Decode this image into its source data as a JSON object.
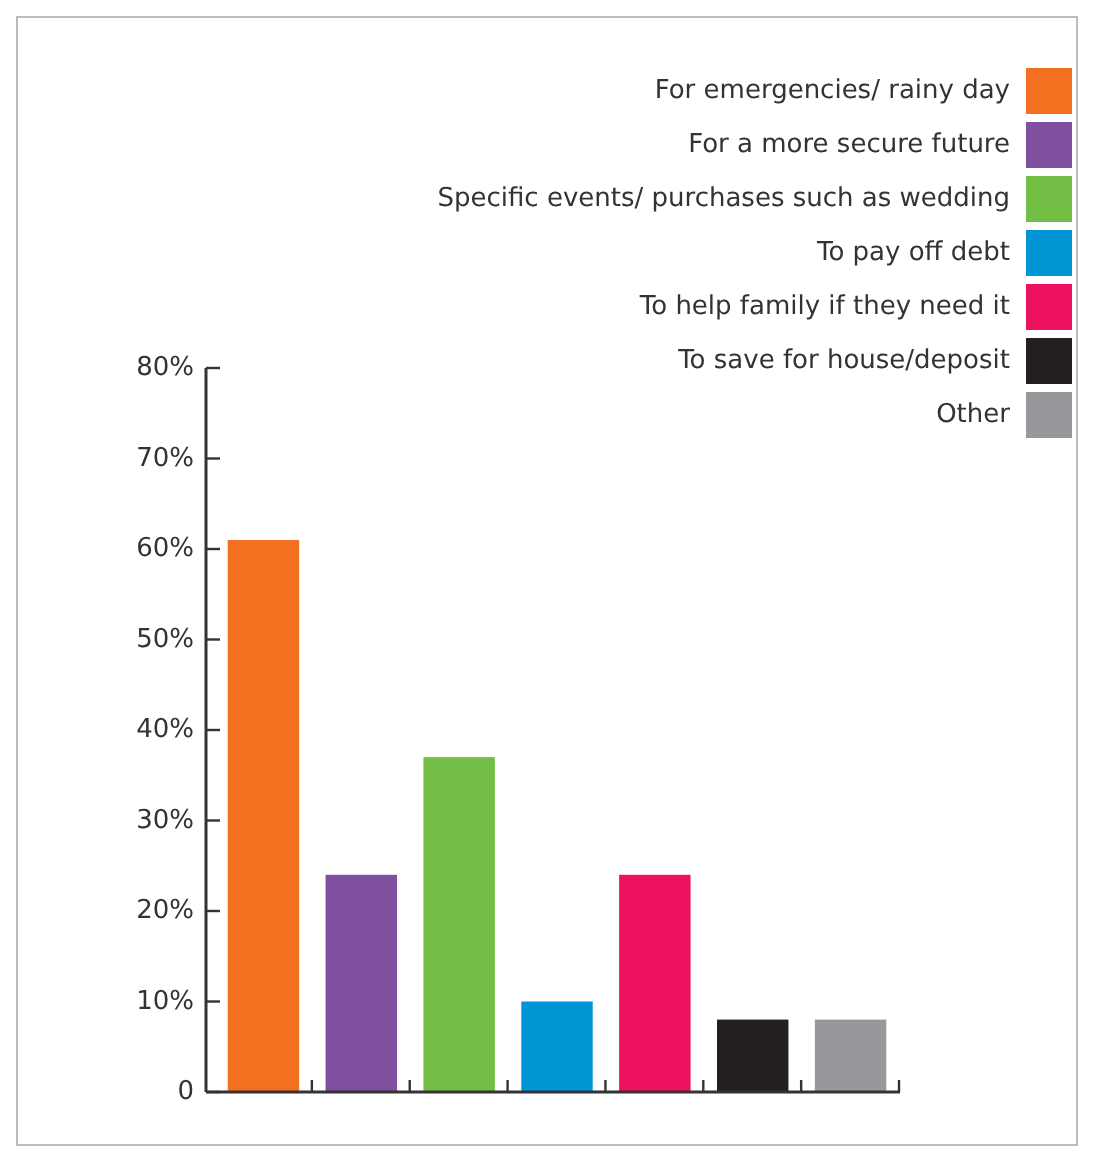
{
  "chart_data": {
    "type": "bar",
    "categories": [
      null,
      null,
      null,
      null,
      null,
      null,
      null
    ],
    "series": [
      {
        "name": "For emergencies/ rainy day",
        "color": "#f37021",
        "values": [
          61,
          null,
          null,
          null,
          null,
          null,
          null
        ]
      },
      {
        "name": "For a more secure future",
        "color": "#7f50a0",
        "values": [
          null,
          24,
          null,
          null,
          null,
          null,
          null
        ]
      },
      {
        "name": "Specific events/ purchases such as wedding",
        "color": "#72be44",
        "values": [
          null,
          null,
          37,
          null,
          null,
          null,
          null
        ]
      },
      {
        "name": "To pay off debt",
        "color": "#0096d6",
        "values": [
          null,
          null,
          null,
          10,
          null,
          null,
          null
        ]
      },
      {
        "name": "To help family if they need it",
        "color": "#ec1260",
        "values": [
          null,
          null,
          null,
          null,
          24,
          null,
          null
        ]
      },
      {
        "name": "To save for house/deposit",
        "color": "#231f20",
        "values": [
          null,
          null,
          null,
          null,
          null,
          8,
          null
        ]
      },
      {
        "name": "Other",
        "color": "#97989b",
        "values": [
          null,
          null,
          null,
          null,
          null,
          null,
          8
        ]
      }
    ],
    "ylim": [
      0,
      80
    ],
    "yticks": [
      {
        "value": 0,
        "label": "0"
      },
      {
        "value": 10,
        "label": "10%"
      },
      {
        "value": 20,
        "label": "20%"
      },
      {
        "value": 30,
        "label": "30%"
      },
      {
        "value": 40,
        "label": "40%"
      },
      {
        "value": 50,
        "label": "50%"
      },
      {
        "value": 60,
        "label": "60%"
      },
      {
        "value": 70,
        "label": "70%"
      },
      {
        "value": 80,
        "label": "80%"
      }
    ],
    "legend": "top right",
    "tick_labels": "y"
  }
}
